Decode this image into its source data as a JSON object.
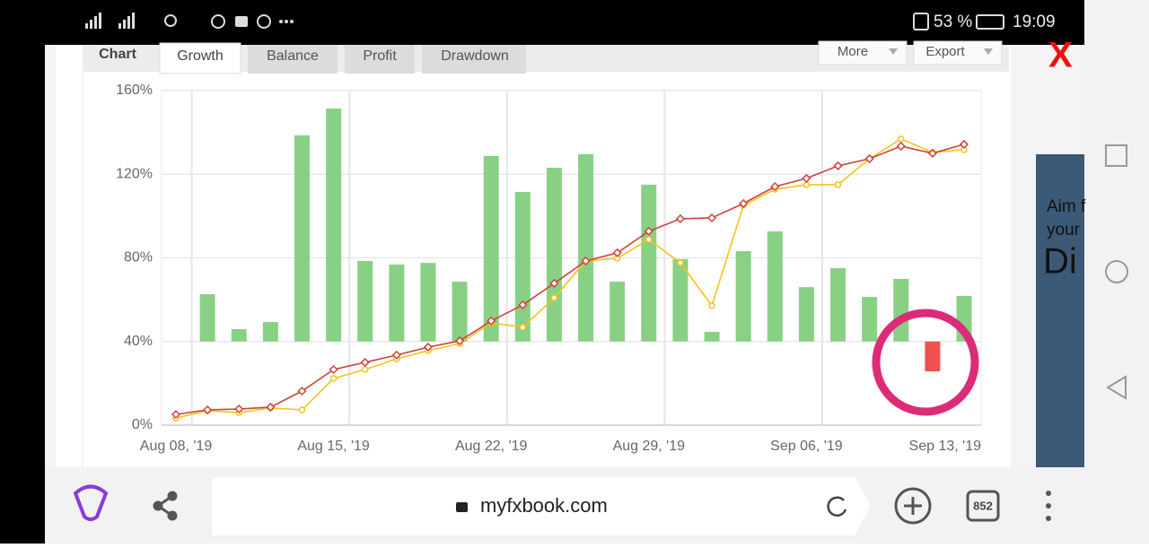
{
  "status_bar": {
    "battery": "53 %",
    "time": "19:09"
  },
  "tabs": {
    "label": "Chart",
    "items": [
      "Growth",
      "Balance",
      "Profit",
      "Drawdown"
    ],
    "buttons": [
      "More",
      "Export"
    ]
  },
  "chart_data": {
    "type": "combo",
    "categories": [
      "Aug 08, '19",
      null,
      null,
      null,
      null,
      "Aug 15, '19",
      null,
      null,
      null,
      null,
      "Aug 22, '19",
      null,
      null,
      null,
      null,
      "Aug 29, '19",
      null,
      null,
      null,
      null,
      "Sep 06, '19",
      null,
      null,
      null,
      null,
      "Sep 13, '19"
    ],
    "ylim": [
      0,
      160
    ],
    "yticks": [
      {
        "value": 0,
        "label": "0%"
      },
      {
        "value": 40,
        "label": "40%"
      },
      {
        "value": 80,
        "label": "80%"
      },
      {
        "value": 120,
        "label": "120%"
      },
      {
        "value": 160,
        "label": "160%"
      }
    ],
    "y2lim": [
      -40,
      120
    ],
    "grid": true,
    "series": [
      {
        "type": "bar",
        "axis": "y2",
        "color": "#88d184",
        "negative_color": "#f0524f",
        "values": [
          null,
          22.6,
          5.9,
          9.3,
          98.6,
          111.4,
          38.5,
          36.8,
          37.6,
          28.6,
          88.7,
          71.5,
          83.1,
          89.6,
          28.6,
          75,
          39.4,
          4.6,
          43.2,
          52.7,
          26,
          35.1,
          21.3,
          29.9,
          -14.3,
          21.8
        ]
      },
      {
        "type": "line",
        "marker": "circle",
        "color": "#f2c31b",
        "values": [
          3.4,
          6.9,
          6,
          8.2,
          7.3,
          22.3,
          26.6,
          31.7,
          35.6,
          39,
          48.9,
          46.8,
          60.9,
          78.5,
          79.8,
          88.8,
          77.6,
          57.1,
          105.1,
          112.8,
          115,
          115,
          127.4,
          136.9,
          130.4,
          131.7
        ]
      },
      {
        "type": "line",
        "marker": "diamond",
        "color": "#d0413c",
        "values": [
          5.1,
          7.3,
          7.7,
          8.6,
          16.3,
          26.6,
          30,
          33.5,
          37.3,
          40.3,
          49.8,
          57.5,
          67.8,
          78.5,
          82.4,
          92.7,
          98.7,
          99.1,
          106,
          114.1,
          118,
          124,
          127.4,
          133.4,
          130,
          134.3
        ]
      }
    ]
  },
  "ad": {
    "lines": [
      "Aim f",
      "your",
      "Di"
    ]
  },
  "browser_bar": {
    "url": "myfxbook.com",
    "tab_count": "852"
  }
}
